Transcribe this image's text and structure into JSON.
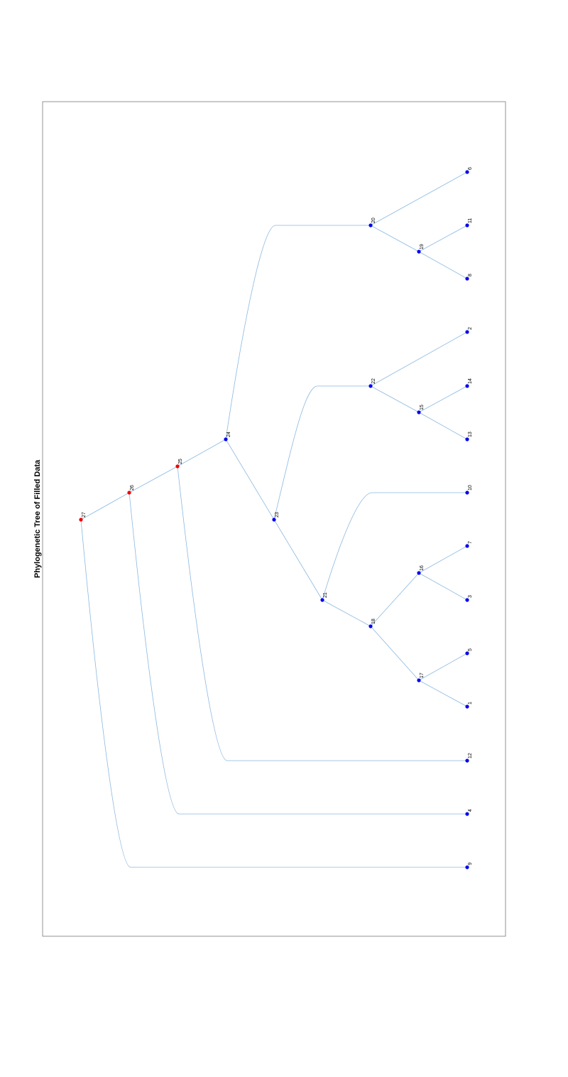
{
  "title": "Phylogenetic Tree of Filled Data",
  "colors": {
    "edge": "#8ab8e0",
    "leaf_node": "#0000ee",
    "root_node": "#ee0000",
    "frame": "#666666"
  },
  "tree": {
    "nodes": [
      {
        "id": "27",
        "type": "internal-highlighted"
      },
      {
        "id": "26",
        "type": "internal-highlighted"
      },
      {
        "id": "25",
        "type": "internal-highlighted"
      },
      {
        "id": "24",
        "type": "internal"
      },
      {
        "id": "23",
        "type": "internal"
      },
      {
        "id": "22",
        "type": "internal"
      },
      {
        "id": "21",
        "type": "internal"
      },
      {
        "id": "20",
        "type": "internal"
      },
      {
        "id": "19",
        "type": "internal"
      },
      {
        "id": "18",
        "type": "internal"
      },
      {
        "id": "17",
        "type": "internal"
      },
      {
        "id": "16",
        "type": "internal"
      },
      {
        "id": "15",
        "type": "internal"
      },
      {
        "id": "1",
        "type": "leaf"
      },
      {
        "id": "2",
        "type": "leaf"
      },
      {
        "id": "3",
        "type": "leaf"
      },
      {
        "id": "4",
        "type": "leaf"
      },
      {
        "id": "5",
        "type": "leaf"
      },
      {
        "id": "6",
        "type": "leaf"
      },
      {
        "id": "7",
        "type": "leaf"
      },
      {
        "id": "8",
        "type": "leaf"
      },
      {
        "id": "9",
        "type": "leaf"
      },
      {
        "id": "10",
        "type": "leaf"
      },
      {
        "id": "11",
        "type": "leaf"
      },
      {
        "id": "12",
        "type": "leaf"
      },
      {
        "id": "13",
        "type": "leaf"
      },
      {
        "id": "14",
        "type": "leaf"
      }
    ],
    "edges": [
      [
        "27",
        "26"
      ],
      [
        "27",
        "9"
      ],
      [
        "26",
        "25"
      ],
      [
        "26",
        "4"
      ],
      [
        "25",
        "24"
      ],
      [
        "25",
        "12"
      ],
      [
        "24",
        "23"
      ],
      [
        "24",
        "20"
      ],
      [
        "23",
        "21"
      ],
      [
        "23",
        "22"
      ],
      [
        "22",
        "15"
      ],
      [
        "22",
        "2"
      ],
      [
        "15",
        "13"
      ],
      [
        "15",
        "14"
      ],
      [
        "21",
        "18"
      ],
      [
        "21",
        "10"
      ],
      [
        "18",
        "17"
      ],
      [
        "18",
        "16"
      ],
      [
        "17",
        "1"
      ],
      [
        "17",
        "5"
      ],
      [
        "16",
        "3"
      ],
      [
        "16",
        "7"
      ],
      [
        "20",
        "19"
      ],
      [
        "20",
        "6"
      ],
      [
        "19",
        "8"
      ],
      [
        "19",
        "11"
      ]
    ]
  }
}
